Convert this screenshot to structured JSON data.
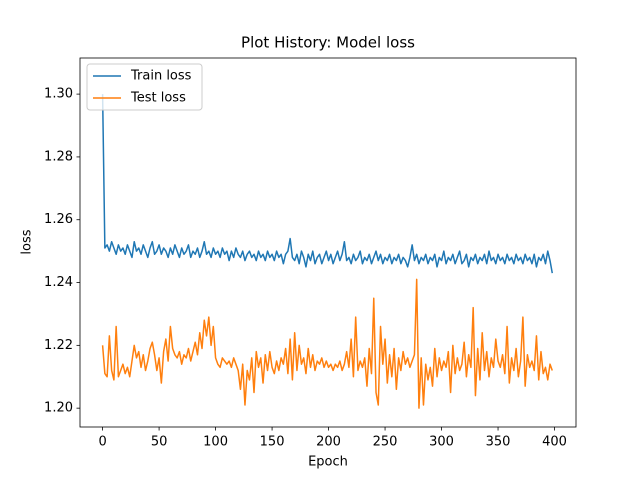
{
  "chart_data": {
    "type": "line",
    "title": "Plot History: Model loss",
    "x_label": "Epoch",
    "y_label": "loss",
    "x": [
      0,
      2,
      4,
      6,
      8,
      10,
      12,
      14,
      16,
      18,
      20,
      22,
      24,
      26,
      28,
      30,
      32,
      34,
      36,
      38,
      40,
      42,
      44,
      46,
      48,
      50,
      52,
      54,
      56,
      58,
      60,
      62,
      64,
      66,
      68,
      70,
      72,
      74,
      76,
      78,
      80,
      82,
      84,
      86,
      88,
      90,
      92,
      94,
      96,
      98,
      100,
      102,
      104,
      106,
      108,
      110,
      112,
      114,
      116,
      118,
      120,
      122,
      124,
      126,
      128,
      130,
      132,
      134,
      136,
      138,
      140,
      142,
      144,
      146,
      148,
      150,
      152,
      154,
      156,
      158,
      160,
      162,
      164,
      166,
      168,
      170,
      172,
      174,
      176,
      178,
      180,
      182,
      184,
      186,
      188,
      190,
      192,
      194,
      196,
      198,
      200,
      202,
      204,
      206,
      208,
      210,
      212,
      214,
      216,
      218,
      220,
      222,
      224,
      226,
      228,
      230,
      232,
      234,
      236,
      238,
      240,
      242,
      244,
      246,
      248,
      250,
      252,
      254,
      256,
      258,
      260,
      262,
      264,
      266,
      268,
      270,
      272,
      274,
      276,
      278,
      280,
      282,
      284,
      286,
      288,
      290,
      292,
      294,
      296,
      298,
      300,
      302,
      304,
      306,
      308,
      310,
      312,
      314,
      316,
      318,
      320,
      322,
      324,
      326,
      328,
      330,
      332,
      334,
      336,
      338,
      340,
      342,
      344,
      346,
      348,
      350,
      352,
      354,
      356,
      358,
      360,
      362,
      364,
      366,
      368,
      370,
      372,
      374,
      376,
      378,
      380,
      382,
      384,
      386,
      388,
      390,
      392,
      394,
      396,
      398
    ],
    "series": [
      {
        "name": "Train loss",
        "color": "#1f77b4",
        "values": [
          1.3,
          1.251,
          1.252,
          1.25,
          1.253,
          1.251,
          1.249,
          1.252,
          1.25,
          1.251,
          1.249,
          1.252,
          1.25,
          1.248,
          1.253,
          1.25,
          1.251,
          1.249,
          1.252,
          1.25,
          1.248,
          1.251,
          1.253,
          1.249,
          1.25,
          1.252,
          1.249,
          1.251,
          1.25,
          1.248,
          1.251,
          1.249,
          1.252,
          1.25,
          1.248,
          1.251,
          1.249,
          1.25,
          1.252,
          1.248,
          1.25,
          1.249,
          1.251,
          1.248,
          1.25,
          1.253,
          1.249,
          1.25,
          1.248,
          1.251,
          1.249,
          1.25,
          1.248,
          1.251,
          1.249,
          1.25,
          1.247,
          1.25,
          1.248,
          1.251,
          1.249,
          1.248,
          1.25,
          1.247,
          1.249,
          1.25,
          1.248,
          1.249,
          1.247,
          1.25,
          1.248,
          1.249,
          1.247,
          1.25,
          1.248,
          1.249,
          1.247,
          1.25,
          1.248,
          1.249,
          1.246,
          1.249,
          1.25,
          1.254,
          1.248,
          1.247,
          1.249,
          1.246,
          1.25,
          1.248,
          1.245,
          1.249,
          1.247,
          1.25,
          1.246,
          1.248,
          1.249,
          1.246,
          1.248,
          1.25,
          1.247,
          1.249,
          1.246,
          1.248,
          1.25,
          1.247,
          1.249,
          1.253,
          1.247,
          1.248,
          1.246,
          1.249,
          1.247,
          1.248,
          1.25,
          1.246,
          1.248,
          1.247,
          1.249,
          1.246,
          1.248,
          1.25,
          1.247,
          1.249,
          1.246,
          1.248,
          1.247,
          1.249,
          1.246,
          1.248,
          1.247,
          1.249,
          1.246,
          1.248,
          1.247,
          1.245,
          1.248,
          1.252,
          1.247,
          1.249,
          1.246,
          1.248,
          1.247,
          1.249,
          1.246,
          1.248,
          1.247,
          1.249,
          1.245,
          1.248,
          1.247,
          1.25,
          1.246,
          1.248,
          1.247,
          1.249,
          1.246,
          1.248,
          1.25,
          1.246,
          1.247,
          1.249,
          1.245,
          1.248,
          1.247,
          1.249,
          1.246,
          1.248,
          1.247,
          1.249,
          1.246,
          1.25,
          1.247,
          1.248,
          1.246,
          1.249,
          1.247,
          1.248,
          1.246,
          1.249,
          1.247,
          1.248,
          1.246,
          1.249,
          1.247,
          1.248,
          1.246,
          1.249,
          1.247,
          1.248,
          1.246,
          1.249,
          1.245,
          1.248,
          1.247,
          1.249,
          1.246,
          1.25,
          1.247,
          1.243
        ]
      },
      {
        "name": "Test loss",
        "color": "#ff7f0e",
        "values": [
          1.22,
          1.211,
          1.21,
          1.223,
          1.212,
          1.209,
          1.226,
          1.21,
          1.212,
          1.214,
          1.211,
          1.213,
          1.21,
          1.215,
          1.22,
          1.216,
          1.218,
          1.213,
          1.217,
          1.212,
          1.215,
          1.219,
          1.221,
          1.217,
          1.212,
          1.216,
          1.208,
          1.218,
          1.222,
          1.215,
          1.226,
          1.219,
          1.217,
          1.216,
          1.218,
          1.214,
          1.217,
          1.216,
          1.219,
          1.215,
          1.218,
          1.221,
          1.217,
          1.224,
          1.219,
          1.228,
          1.223,
          1.229,
          1.22,
          1.226,
          1.216,
          1.214,
          1.213,
          1.216,
          1.215,
          1.214,
          1.215,
          1.213,
          1.216,
          1.214,
          1.212,
          1.206,
          1.214,
          1.201,
          1.212,
          1.209,
          1.216,
          1.205,
          1.218,
          1.213,
          1.216,
          1.208,
          1.217,
          1.212,
          1.218,
          1.213,
          1.211,
          1.215,
          1.212,
          1.216,
          1.214,
          1.219,
          1.211,
          1.222,
          1.209,
          1.224,
          1.212,
          1.22,
          1.214,
          1.216,
          1.211,
          1.219,
          1.213,
          1.217,
          1.212,
          1.215,
          1.214,
          1.216,
          1.213,
          1.215,
          1.213,
          1.214,
          1.212,
          1.214,
          1.213,
          1.215,
          1.212,
          1.214,
          1.218,
          1.213,
          1.222,
          1.21,
          1.229,
          1.212,
          1.215,
          1.213,
          1.216,
          1.207,
          1.219,
          1.211,
          1.235,
          1.205,
          1.201,
          1.226,
          1.214,
          1.222,
          1.208,
          1.217,
          1.21,
          1.219,
          1.206,
          1.216,
          1.212,
          1.218,
          1.214,
          1.216,
          1.213,
          1.215,
          1.217,
          1.241,
          1.2,
          1.216,
          1.201,
          1.214,
          1.209,
          1.213,
          1.207,
          1.219,
          1.21,
          1.216,
          1.212,
          1.215,
          1.213,
          1.218,
          1.205,
          1.22,
          1.211,
          1.216,
          1.212,
          1.214,
          1.221,
          1.21,
          1.217,
          1.213,
          1.232,
          1.204,
          1.219,
          1.209,
          1.224,
          1.212,
          1.218,
          1.21,
          1.216,
          1.213,
          1.222,
          1.215,
          1.213,
          1.217,
          1.211,
          1.226,
          1.208,
          1.216,
          1.212,
          1.219,
          1.21,
          1.215,
          1.229,
          1.207,
          1.217,
          1.213,
          1.215,
          1.212,
          1.223,
          1.209,
          1.218,
          1.211,
          1.213,
          1.209,
          1.214,
          1.212
        ]
      }
    ],
    "xlim": [
      -20,
      419
    ],
    "xticks": [
      0,
      50,
      100,
      150,
      200,
      250,
      300,
      350,
      400
    ],
    "ylim": [
      1.194,
      1.3115
    ],
    "yticks": [
      {
        "value": 1.2,
        "label": "1.20"
      },
      {
        "value": 1.22,
        "label": "1.22"
      },
      {
        "value": 1.24,
        "label": "1.24"
      },
      {
        "value": 1.26,
        "label": "1.26"
      },
      {
        "value": 1.28,
        "label": "1.28"
      },
      {
        "value": 1.3,
        "label": "1.30"
      }
    ],
    "legend": "upper left"
  }
}
